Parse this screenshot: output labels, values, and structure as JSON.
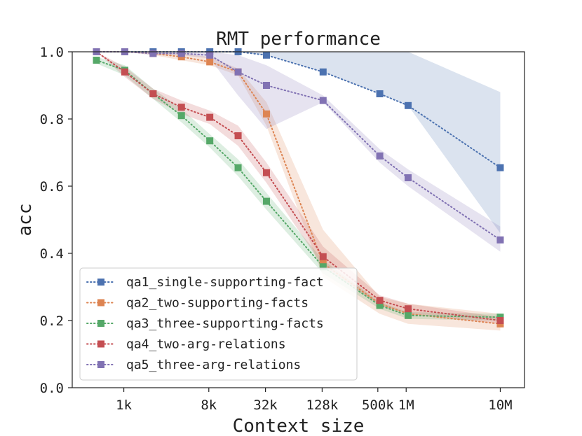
{
  "chart_data": {
    "type": "line",
    "title": "RMT performance",
    "xlabel": "Context size",
    "ylabel": "acc",
    "x_scale": "log",
    "x": [
      512,
      1024,
      2048,
      4096,
      8192,
      16384,
      32768,
      131072,
      524288,
      1048576,
      10000000
    ],
    "xticks": [
      {
        "value": 1000,
        "label": "1k"
      },
      {
        "value": 8000,
        "label": "8k"
      },
      {
        "value": 32000,
        "label": "32k"
      },
      {
        "value": 128000,
        "label": "128k"
      },
      {
        "value": 500000,
        "label": "500k"
      },
      {
        "value": 1000000,
        "label": "1M"
      },
      {
        "value": 10000000,
        "label": "10M"
      }
    ],
    "ylim": [
      0,
      1
    ],
    "yticks": [
      {
        "value": 0.0,
        "label": "0.0"
      },
      {
        "value": 0.2,
        "label": "0.2"
      },
      {
        "value": 0.4,
        "label": "0.4"
      },
      {
        "value": 0.6,
        "label": "0.6"
      },
      {
        "value": 0.8,
        "label": "0.8"
      },
      {
        "value": 1.0,
        "label": "1.0"
      }
    ],
    "grid": false,
    "legend_position": "lower-left",
    "series": [
      {
        "name": "qa1_single-supporting-fact",
        "color": "#4c72b0",
        "values": [
          1.0,
          1.0,
          1.0,
          1.0,
          1.0,
          1.0,
          0.99,
          0.94,
          0.875,
          0.84,
          0.655
        ],
        "band_low": [
          1.0,
          1.0,
          1.0,
          1.0,
          1.0,
          1.0,
          0.99,
          0.94,
          0.875,
          0.84,
          0.46
        ],
        "band_high": [
          1.0,
          1.0,
          1.0,
          1.0,
          1.0,
          1.0,
          1.0,
          1.0,
          1.0,
          1.0,
          0.88
        ]
      },
      {
        "name": "qa2_two-supporting-facts",
        "color": "#dd8452",
        "values": [
          1.0,
          1.0,
          0.995,
          0.985,
          0.97,
          0.94,
          0.815,
          0.37,
          0.25,
          0.22,
          0.19
        ],
        "band_low": [
          1.0,
          1.0,
          0.99,
          0.975,
          0.96,
          0.93,
          0.78,
          0.33,
          0.22,
          0.19,
          0.17
        ],
        "band_high": [
          1.0,
          1.0,
          1.0,
          0.995,
          0.985,
          0.95,
          0.85,
          0.47,
          0.27,
          0.25,
          0.22
        ]
      },
      {
        "name": "qa3_three-supporting-facts",
        "color": "#55a868",
        "values": [
          0.975,
          0.945,
          0.875,
          0.81,
          0.735,
          0.655,
          0.555,
          0.36,
          0.245,
          0.215,
          0.21
        ],
        "band_low": [
          0.965,
          0.93,
          0.86,
          0.79,
          0.715,
          0.63,
          0.53,
          0.34,
          0.235,
          0.205,
          0.2
        ],
        "band_high": [
          0.985,
          0.96,
          0.89,
          0.83,
          0.755,
          0.68,
          0.58,
          0.38,
          0.255,
          0.225,
          0.22
        ]
      },
      {
        "name": "qa4_two-arg-relations",
        "color": "#c44e52",
        "values": [
          1.0,
          0.94,
          0.875,
          0.835,
          0.805,
          0.75,
          0.64,
          0.39,
          0.26,
          0.235,
          0.2
        ],
        "band_low": [
          1.0,
          0.925,
          0.86,
          0.815,
          0.785,
          0.72,
          0.61,
          0.36,
          0.245,
          0.22,
          0.19
        ],
        "band_high": [
          1.0,
          0.955,
          0.89,
          0.855,
          0.825,
          0.78,
          0.67,
          0.42,
          0.275,
          0.25,
          0.21
        ]
      },
      {
        "name": "qa5_three-arg-relations",
        "color": "#8172b3",
        "values": [
          1.0,
          1.0,
          0.995,
          0.995,
          0.99,
          0.94,
          0.9,
          0.855,
          0.69,
          0.625,
          0.44
        ],
        "band_low": [
          1.0,
          1.0,
          0.99,
          0.99,
          0.98,
          0.87,
          0.77,
          0.85,
          0.67,
          0.6,
          0.405
        ],
        "band_high": [
          1.0,
          1.0,
          1.0,
          1.0,
          1.0,
          0.99,
          0.96,
          0.87,
          0.71,
          0.65,
          0.48
        ]
      }
    ]
  }
}
